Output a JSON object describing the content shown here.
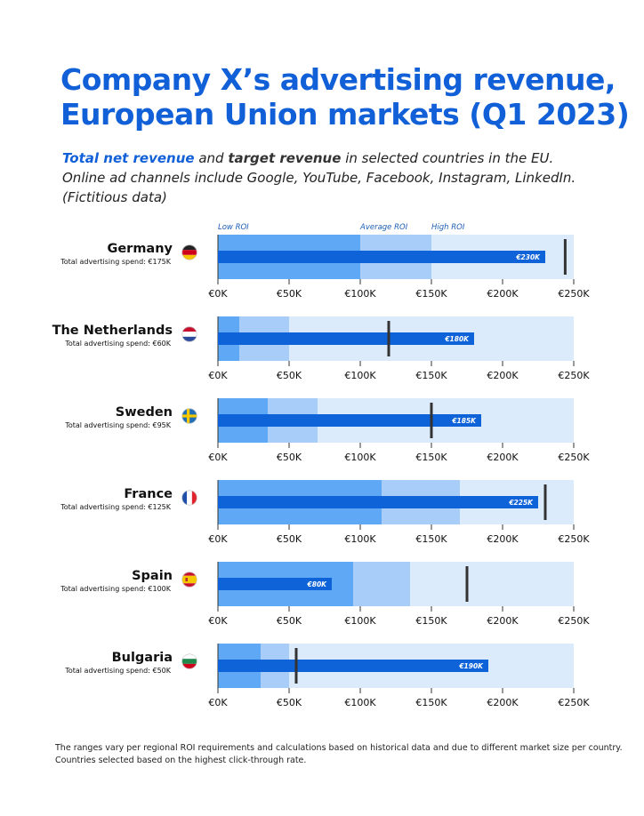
{
  "title": [
    "Company X’s advertising revenue,",
    "European Union markets (Q1 2023)"
  ],
  "subtitle": {
    "line1_part1": "Total net revenue",
    "line1_part2": "and",
    "line1_part3": "target revenue",
    "line1_part4": "in selected countries in the EU.",
    "line2": "Online ad channels include Google, YouTube, Facebook, Instagram, LinkedIn.",
    "line3": "(Fictitious data)"
  },
  "colors": {
    "low": "#5fa8f6",
    "average": "#a8cdf9",
    "high": "#dcebfc",
    "bar": "#0f63d8",
    "target": "#333333",
    "title": "#1160d8"
  },
  "chart_data": {
    "type": "bullet",
    "range_labels": [
      "Low ROI",
      "Average ROI",
      "High ROI"
    ],
    "xlim": [
      0,
      250
    ],
    "ticks": [
      "€0K",
      "€50K",
      "€100K",
      "€150K",
      "€200K",
      "€250K"
    ],
    "tick_values": [
      0,
      50,
      100,
      150,
      200,
      250
    ],
    "countries": [
      {
        "name": "Germany",
        "spend_label": "Total advertising spend: €175K",
        "flag": "germany-flag",
        "ranges": [
          100,
          150,
          250
        ],
        "value": 230,
        "value_label": "€230K",
        "target": 244
      },
      {
        "name": "The Netherlands",
        "spend_label": "Total advertising spend: €60K",
        "flag": "netherlands-flag",
        "ranges": [
          15,
          50,
          250
        ],
        "value": 180,
        "value_label": "€180K",
        "target": 120
      },
      {
        "name": "Sweden",
        "spend_label": "Total advertising spend: €95K",
        "flag": "sweden-flag",
        "ranges": [
          35,
          70,
          250
        ],
        "value": 185,
        "value_label": "€185K",
        "target": 150
      },
      {
        "name": "France",
        "spend_label": "Total advertising spend: €125K",
        "flag": "france-flag",
        "ranges": [
          115,
          170,
          250
        ],
        "value": 225,
        "value_label": "€225K",
        "target": 230
      },
      {
        "name": "Spain",
        "spend_label": "Total advertising spend: €100K",
        "flag": "spain-flag",
        "ranges": [
          95,
          135,
          250
        ],
        "value": 80,
        "value_label": "€80K",
        "target": 175
      },
      {
        "name": "Bulgaria",
        "spend_label": "Total advertising spend: €50K",
        "flag": "bulgaria-flag",
        "ranges": [
          30,
          50,
          250
        ],
        "value": 190,
        "value_label": "€190K",
        "target": 55
      }
    ]
  },
  "footnote": [
    "The ranges vary per regional ROI requirements and calculations based on historical data and due to different market size per country.",
    "Countries selected based on the highest click-through rate."
  ]
}
